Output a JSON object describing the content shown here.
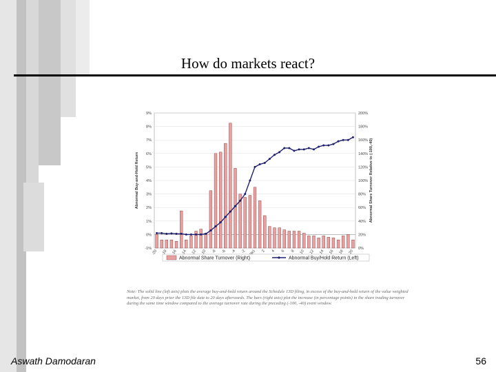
{
  "slide": {
    "title": "How do markets react?",
    "author": "Aswath Damodaran",
    "page_number": "56"
  },
  "note": "Note: The solid line (left axis) plots the average buy-and-hold return around the Schedule 13D filing, in excess of the buy-and-hold return of the value weighted market, from 20 days prior the 13D file date to 20 days afterwards. The bars (right axis) plot the increase (in percentage points) in the share trading turnover during the same time window compared to the average turnover rate during the preceding (-100, -40) event window.",
  "chart_data": {
    "type": "bar",
    "x": [
      -20,
      -19,
      -18,
      -17,
      -16,
      -15,
      -14,
      -13,
      -12,
      -11,
      -10,
      -9,
      -8,
      -7,
      -6,
      -5,
      -4,
      -3,
      -2,
      -1,
      0,
      1,
      2,
      3,
      4,
      5,
      6,
      7,
      8,
      9,
      10,
      11,
      12,
      13,
      14,
      15,
      16,
      17,
      18,
      19,
      20
    ],
    "x_tick_labels": [
      "-20",
      "-18",
      "-16",
      "-14",
      "-12",
      "-10",
      "-8",
      "-6",
      "-4",
      "-2",
      "0 (file)",
      "2",
      "4",
      "6",
      "8",
      "10",
      "12",
      "14",
      "16",
      "18",
      "20"
    ],
    "series": [
      {
        "name": "Abnormal Share Turnover (Right)",
        "axis": "right",
        "kind": "bar",
        "color": "#e8a0a0",
        "values": [
          20,
          12,
          12,
          12,
          10,
          55,
          12,
          18,
          25,
          28,
          22,
          85,
          140,
          142,
          155,
          185,
          118,
          80,
          75,
          78,
          90,
          70,
          48,
          32,
          30,
          30,
          27,
          25,
          25,
          25,
          22,
          18,
          18,
          15,
          18,
          16,
          15,
          12,
          18,
          20,
          12
        ]
      },
      {
        "name": "Abnormal Buy/Hold Return (Left)",
        "axis": "left",
        "kind": "line",
        "color": "#1f1f6e",
        "values": [
          0.1,
          0.1,
          0.05,
          0.08,
          0.05,
          0.05,
          0.0,
          0.0,
          0.0,
          0.0,
          0.05,
          0.3,
          0.6,
          0.9,
          1.3,
          1.7,
          2.1,
          2.5,
          3.0,
          4.0,
          5.0,
          5.2,
          5.3,
          5.6,
          5.9,
          6.1,
          6.4,
          6.4,
          6.2,
          6.3,
          6.3,
          6.4,
          6.3,
          6.5,
          6.6,
          6.6,
          6.7,
          6.9,
          7.0,
          7.0,
          7.2
        ]
      }
    ],
    "y_left": {
      "label": "Abnormal Buy-and-Hold Return",
      "range": [
        -1,
        9
      ],
      "ticks": [
        "-1%",
        "0%",
        "1%",
        "2%",
        "3%",
        "4%",
        "5%",
        "6%",
        "7%",
        "8%",
        "9%"
      ]
    },
    "y_right": {
      "label": "Abnormal Share Turnover Relative to (-100,-40)",
      "range": [
        0,
        200
      ],
      "ticks": [
        "0%",
        "20%",
        "40%",
        "60%",
        "80%",
        "100%",
        "120%",
        "140%",
        "160%",
        "180%",
        "200%"
      ]
    },
    "grid": true,
    "legend_position": "bottom"
  },
  "colors": {
    "background": "#ffffff",
    "title_rule": "#000000",
    "deco_gray_dark": "#a9a9a9",
    "deco_gray_light": "#d4d4d4"
  }
}
